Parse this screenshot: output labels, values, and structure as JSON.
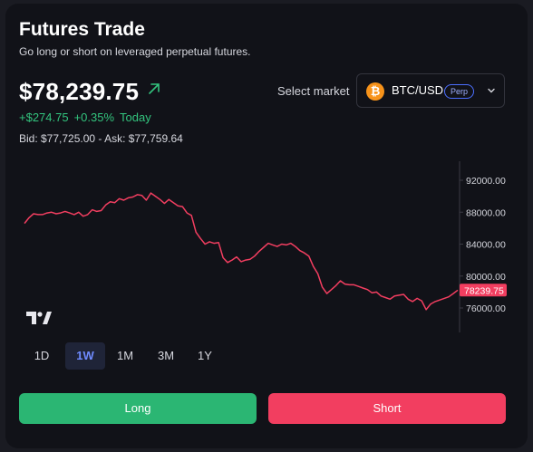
{
  "header": {
    "title": "Futures Trade",
    "subtitle": "Go long or short on leveraged perpetual futures."
  },
  "ticker": {
    "price": "$78,239.75",
    "change_abs": "+$274.75",
    "change_pct": "+0.35%",
    "change_period": "Today",
    "bid_ask": "Bid: $77,725.00 - Ask: $77,759.64",
    "up_color": "#33c47e",
    "trend_icon": "arrow-up-right-icon"
  },
  "market": {
    "label": "Select market",
    "selected": "BTC/USD",
    "badge": "Perp",
    "icon": "bitcoin-icon"
  },
  "chart_data": {
    "type": "line",
    "title": "",
    "xlabel": "",
    "ylabel": "",
    "ylim": [
      73000,
      93500
    ],
    "y_ticks": [
      92000,
      88000,
      84000,
      80000,
      76000
    ],
    "y_tick_labels": [
      "92000.00",
      "88000.00",
      "84000.00",
      "80000.00",
      "76000.00"
    ],
    "last_value_label": "78239.75",
    "last_value": 78239.75,
    "line_color": "#f23e60",
    "grid": false,
    "series": [
      {
        "values": [
          86600,
          87300,
          87800,
          87700,
          87700,
          87900,
          88000,
          87800,
          87900,
          88100,
          87900,
          87700,
          88000,
          87500,
          87700,
          88300,
          88100,
          88200,
          88900,
          89300,
          89200,
          89700,
          89500,
          89800,
          89900,
          90200,
          90100,
          89500,
          90400,
          90000,
          89600,
          89100,
          89600,
          89200,
          88800,
          88700,
          87900,
          87600,
          85500,
          84700,
          84000,
          84300,
          84100,
          84200,
          82300,
          81700,
          82000,
          82400,
          81800,
          82000,
          82100,
          82500,
          83100,
          83600,
          84100,
          83900,
          83700,
          84000,
          83900,
          84100,
          83700,
          83200,
          82900,
          82500,
          81200,
          80300,
          78600,
          77800,
          78300,
          78800,
          79400,
          79000,
          78900,
          78900,
          78700,
          78500,
          78300,
          77900,
          78000,
          77500,
          77300,
          77100,
          77500,
          77600,
          77700,
          77100,
          76800,
          77200,
          76900,
          75800,
          76500,
          76800,
          77000,
          77200,
          77400,
          77800,
          78240
        ]
      }
    ]
  },
  "timeframes": [
    "1D",
    "1W",
    "1M",
    "3M",
    "1Y"
  ],
  "active_timeframe": "1W",
  "actions": {
    "long_label": "Long",
    "short_label": "Short"
  }
}
